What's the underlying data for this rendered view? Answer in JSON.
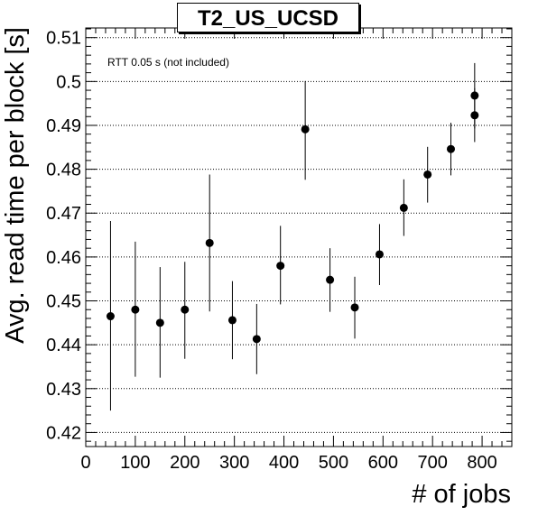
{
  "chart_data": {
    "type": "scatter",
    "title": "T2_US_UCSD",
    "xlabel": "# of jobs",
    "ylabel": "Avg. read time per block [s]",
    "annotation": "RTT 0.05 s (not included)",
    "xlim": [
      0,
      860
    ],
    "ylim": [
      0.4168,
      0.5122
    ],
    "x_ticks": [
      0,
      100,
      200,
      300,
      400,
      500,
      600,
      700,
      800
    ],
    "y_ticks": [
      0.42,
      0.43,
      0.44,
      0.45,
      0.46,
      0.47,
      0.48,
      0.49,
      0.5,
      0.51
    ],
    "y_tick_labels": [
      "0.42",
      "0.43",
      "0.44",
      "0.45",
      "0.46",
      "0.47",
      "0.48",
      "0.49",
      "0.5",
      "0.51"
    ],
    "grid": "horizontal dotted",
    "marker_color": "#000000",
    "points": [
      {
        "x": 50,
        "y": 0.4465,
        "ylow": 0.425,
        "yhigh": 0.4682
      },
      {
        "x": 100,
        "y": 0.448,
        "ylow": 0.4327,
        "yhigh": 0.4635
      },
      {
        "x": 150,
        "y": 0.445,
        "ylow": 0.4325,
        "yhigh": 0.4577
      },
      {
        "x": 200,
        "y": 0.448,
        "ylow": 0.4368,
        "yhigh": 0.4589
      },
      {
        "x": 250,
        "y": 0.4632,
        "ylow": 0.4476,
        "yhigh": 0.4788
      },
      {
        "x": 296,
        "y": 0.4456,
        "ylow": 0.4367,
        "yhigh": 0.4545
      },
      {
        "x": 345,
        "y": 0.4413,
        "ylow": 0.4333,
        "yhigh": 0.4493
      },
      {
        "x": 393,
        "y": 0.458,
        "ylow": 0.4492,
        "yhigh": 0.4671
      },
      {
        "x": 443,
        "y": 0.4891,
        "ylow": 0.4776,
        "yhigh": 0.5001
      },
      {
        "x": 493,
        "y": 0.4548,
        "ylow": 0.4475,
        "yhigh": 0.462
      },
      {
        "x": 543,
        "y": 0.4485,
        "ylow": 0.4414,
        "yhigh": 0.4555
      },
      {
        "x": 593,
        "y": 0.4606,
        "ylow": 0.4536,
        "yhigh": 0.4675
      },
      {
        "x": 642,
        "y": 0.4712,
        "ylow": 0.4648,
        "yhigh": 0.4777
      },
      {
        "x": 690,
        "y": 0.4788,
        "ylow": 0.4724,
        "yhigh": 0.4851
      },
      {
        "x": 737,
        "y": 0.4846,
        "ylow": 0.4786,
        "yhigh": 0.4906
      },
      {
        "x": 785,
        "y": 0.4923,
        "ylow": 0.4862,
        "yhigh": 0.4985
      },
      {
        "x": 785,
        "y": 0.4968,
        "ylow": 0.4893,
        "yhigh": 0.5042
      }
    ]
  }
}
